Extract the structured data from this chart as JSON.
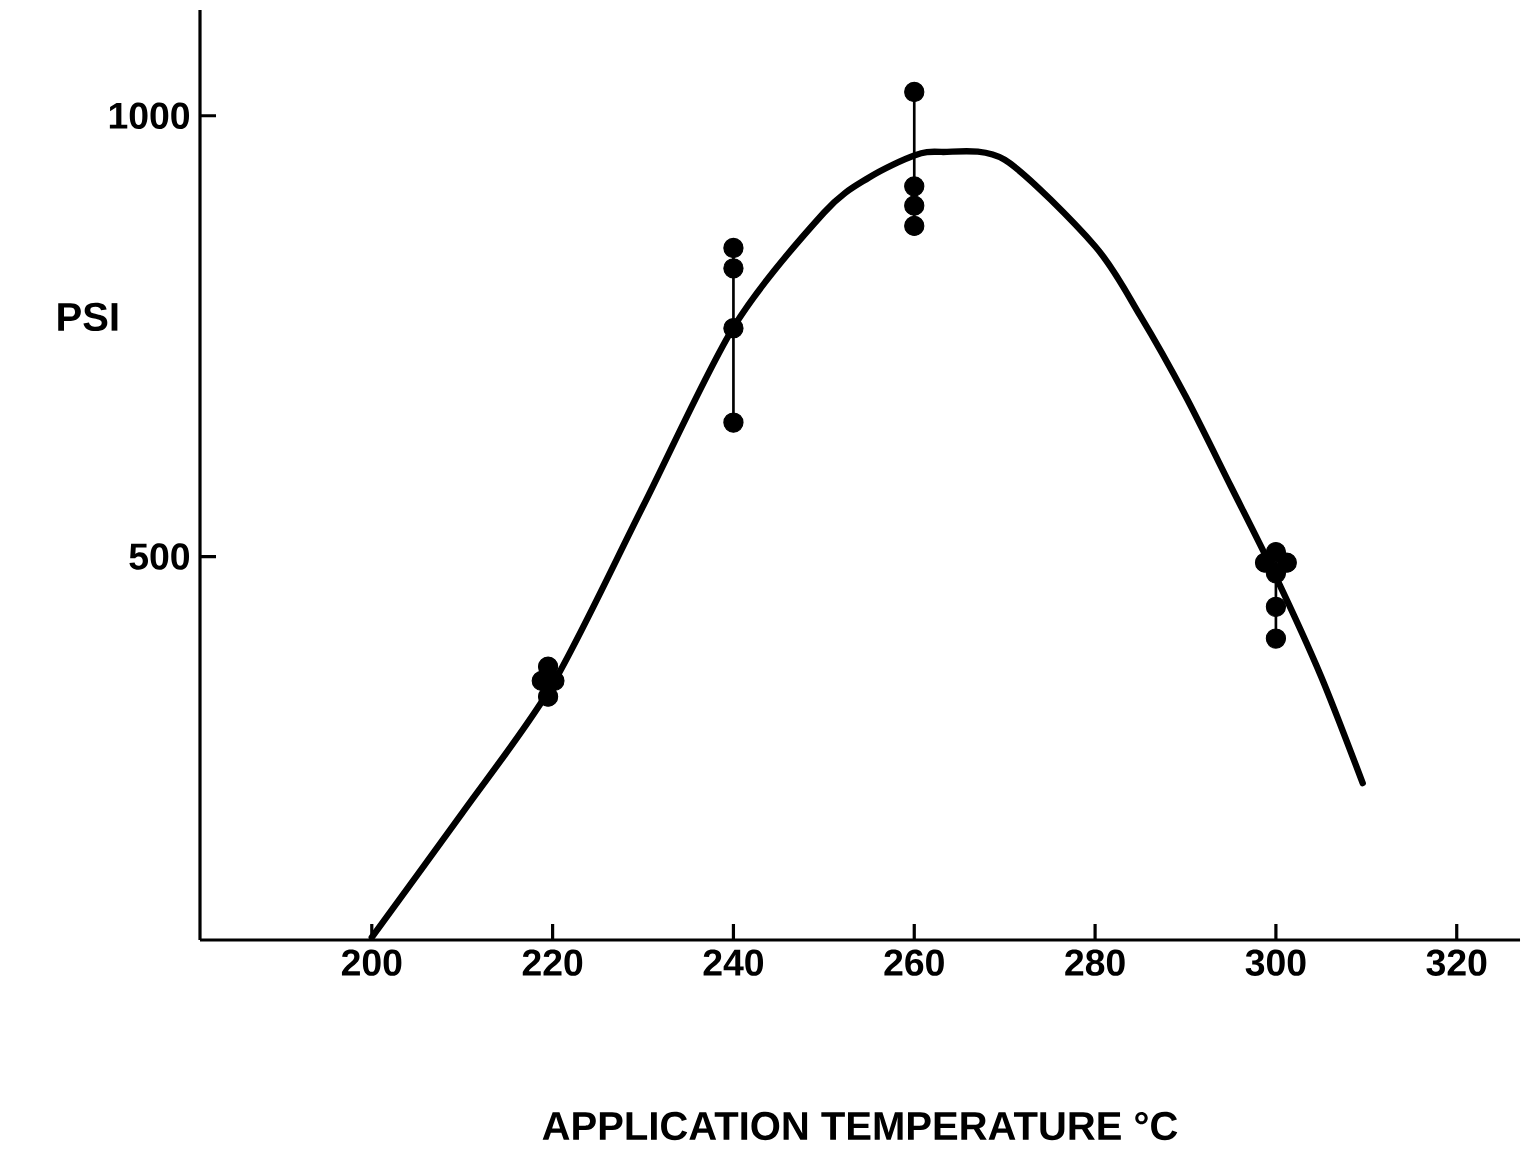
{
  "chart_data": {
    "type": "scatter",
    "xlabel": "APPLICATION TEMPERATURE °C",
    "ylabel": "PSI",
    "xlim": [
      181,
      327
    ],
    "ylim": [
      65,
      1120
    ],
    "xticks": [
      200,
      220,
      240,
      260,
      280,
      300,
      320
    ],
    "yticks": [
      500,
      1000
    ],
    "grid": false,
    "series": [
      {
        "type": "line",
        "color": "#000000",
        "marker": "none",
        "x": [
          200,
          210,
          220,
          230,
          240,
          250,
          255,
          260,
          263,
          270,
          280,
          285,
          290,
          295,
          300,
          305,
          309.6
        ],
        "values": [
          68,
          209,
          355,
          557,
          760,
          890,
          930,
          955,
          959,
          950,
          852,
          773,
          682,
          580,
          477,
          364,
          243
        ]
      },
      {
        "type": "line",
        "color": "#000000",
        "marker": "none",
        "x": [
          240,
          240,
          250,
          260,
          260,
          280,
          300,
          300
        ],
        "values": [
          652,
          850,
          null,
          875,
          1027,
          null,
          407,
          493
        ]
      },
      {
        "color": "#000000",
        "marker": "circle",
        "x": [
          218.8,
          219.5,
          219.5,
          220.2,
          240,
          240,
          240,
          240,
          260,
          260,
          260,
          260,
          298.8,
          300,
          300,
          301.2,
          300,
          300
        ],
        "values": [
          359,
          375,
          341,
          359,
          850,
          827,
          759,
          652,
          1027,
          920,
          898,
          875,
          493,
          505,
          481,
          493,
          443,
          407
        ]
      }
    ]
  }
}
